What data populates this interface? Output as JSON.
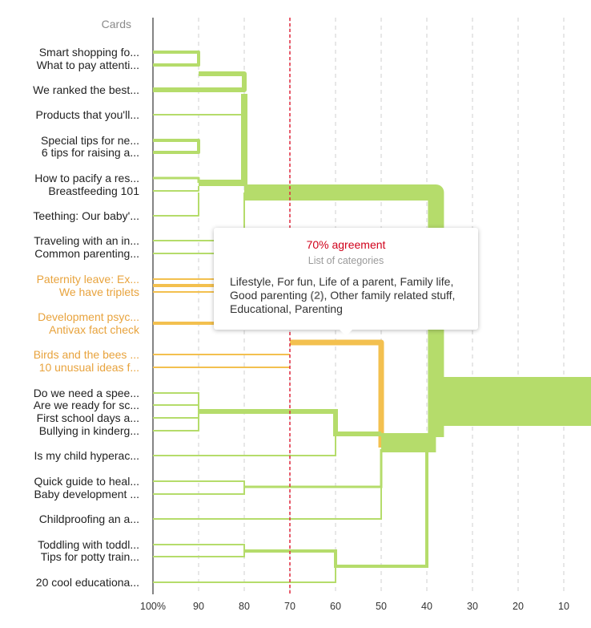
{
  "header": {
    "cards_label": "Cards"
  },
  "colors": {
    "green": "#b5dc6b",
    "green_dark": "#a9d45e",
    "orange": "#f3c04f",
    "orange_text": "#e8a33d",
    "threshold": "#e0263c"
  },
  "chart_data": {
    "type": "dendrogram",
    "x_axis": {
      "ticks": [
        "100%",
        "90",
        "80",
        "70",
        "60",
        "50",
        "40",
        "30",
        "20",
        "10"
      ],
      "range": [
        100,
        10
      ],
      "grid": "dashed vertical"
    },
    "threshold": 70,
    "cards": [
      {
        "label": "Smart shopping fo...",
        "group": "green"
      },
      {
        "label": "What to pay attenti...",
        "group": "green"
      },
      {
        "label": "We ranked the best...",
        "group": "green"
      },
      {
        "label": "Products that you'll...",
        "group": "green"
      },
      {
        "label": "Special tips for ne...",
        "group": "green"
      },
      {
        "label": "6 tips for raising a...",
        "group": "green"
      },
      {
        "label": "How to pacify a res...",
        "group": "green"
      },
      {
        "label": "Breastfeeding 101",
        "group": "green"
      },
      {
        "label": "Teething: Our baby'...",
        "group": "green"
      },
      {
        "label": "Traveling with an in...",
        "group": "green"
      },
      {
        "label": "Common parenting...",
        "group": "green"
      },
      {
        "label": "Paternity leave: Ex...",
        "group": "orange"
      },
      {
        "label": "We have triplets",
        "group": "orange"
      },
      {
        "label": "Development psyc...",
        "group": "orange"
      },
      {
        "label": "Antivax fact check",
        "group": "orange"
      },
      {
        "label": "Birds and the bees ...",
        "group": "orange"
      },
      {
        "label": "10 unusual ideas f...",
        "group": "orange"
      },
      {
        "label": "Do we need a spee...",
        "group": "green"
      },
      {
        "label": "Are we ready for sc...",
        "group": "green"
      },
      {
        "label": "First school days a...",
        "group": "green"
      },
      {
        "label": "Bullying in kinderg...",
        "group": "green"
      },
      {
        "label": "Is my child hyperac...",
        "group": "green"
      },
      {
        "label": "Quick guide to heal...",
        "group": "green"
      },
      {
        "label": "Baby development ...",
        "group": "green"
      },
      {
        "label": "Childproofing an a...",
        "group": "green"
      },
      {
        "label": "Toddling with toddl...",
        "group": "green"
      },
      {
        "label": "Tips for potty train...",
        "group": "green"
      },
      {
        "label": "20 cool educationa...",
        "group": "green"
      }
    ]
  },
  "tooltip": {
    "title": "70% agreement",
    "subtitle": "List of categories",
    "text_before": "Lifestyle, For fun, Life of a parent, Family life, Good parenting ",
    "count": "(2)",
    "text_after": ", Other family related stuff, Educational, Parenting"
  }
}
